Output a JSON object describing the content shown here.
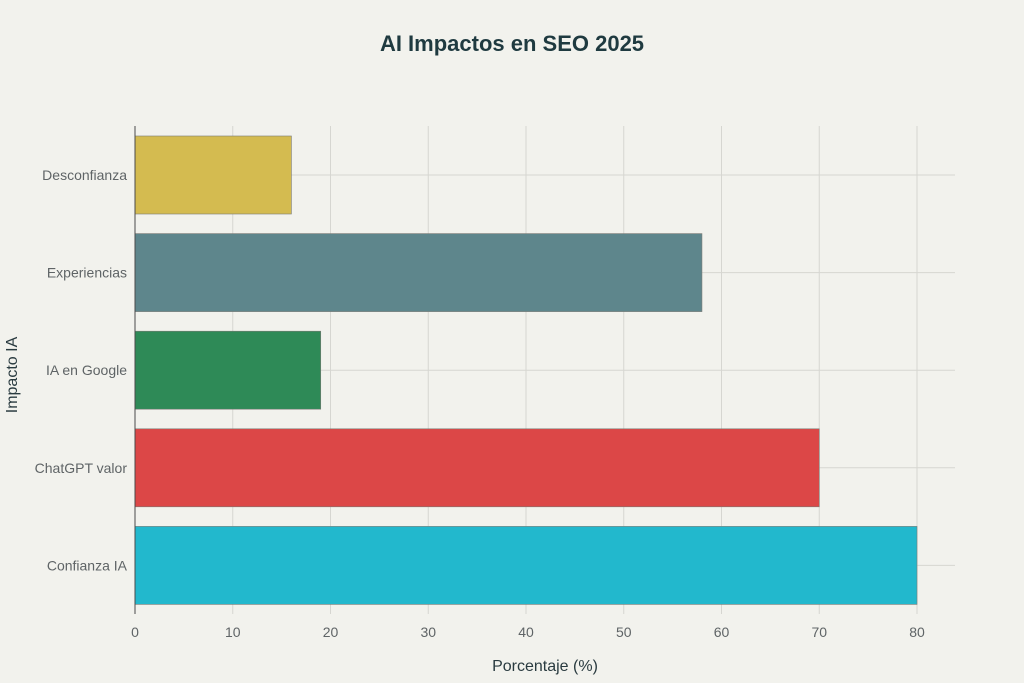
{
  "chart_data": {
    "type": "bar",
    "orientation": "horizontal",
    "title": "AI Impactos en SEO 2025",
    "xlabel": "Porcentaje (%)",
    "ylabel": "Impacto IA",
    "xlim": [
      0,
      84
    ],
    "xticks": [
      0,
      10,
      20,
      30,
      40,
      50,
      60,
      70,
      80
    ],
    "grid": true,
    "categories": [
      "Desconfianza",
      "Experiencias",
      "IA en Google",
      "ChatGPT valor",
      "Confianza IA"
    ],
    "values": [
      16,
      58,
      19,
      70,
      80
    ],
    "colors": [
      "#d4bb50",
      "#5e868c",
      "#2e8a57",
      "#dc4747",
      "#22b8cd"
    ]
  }
}
